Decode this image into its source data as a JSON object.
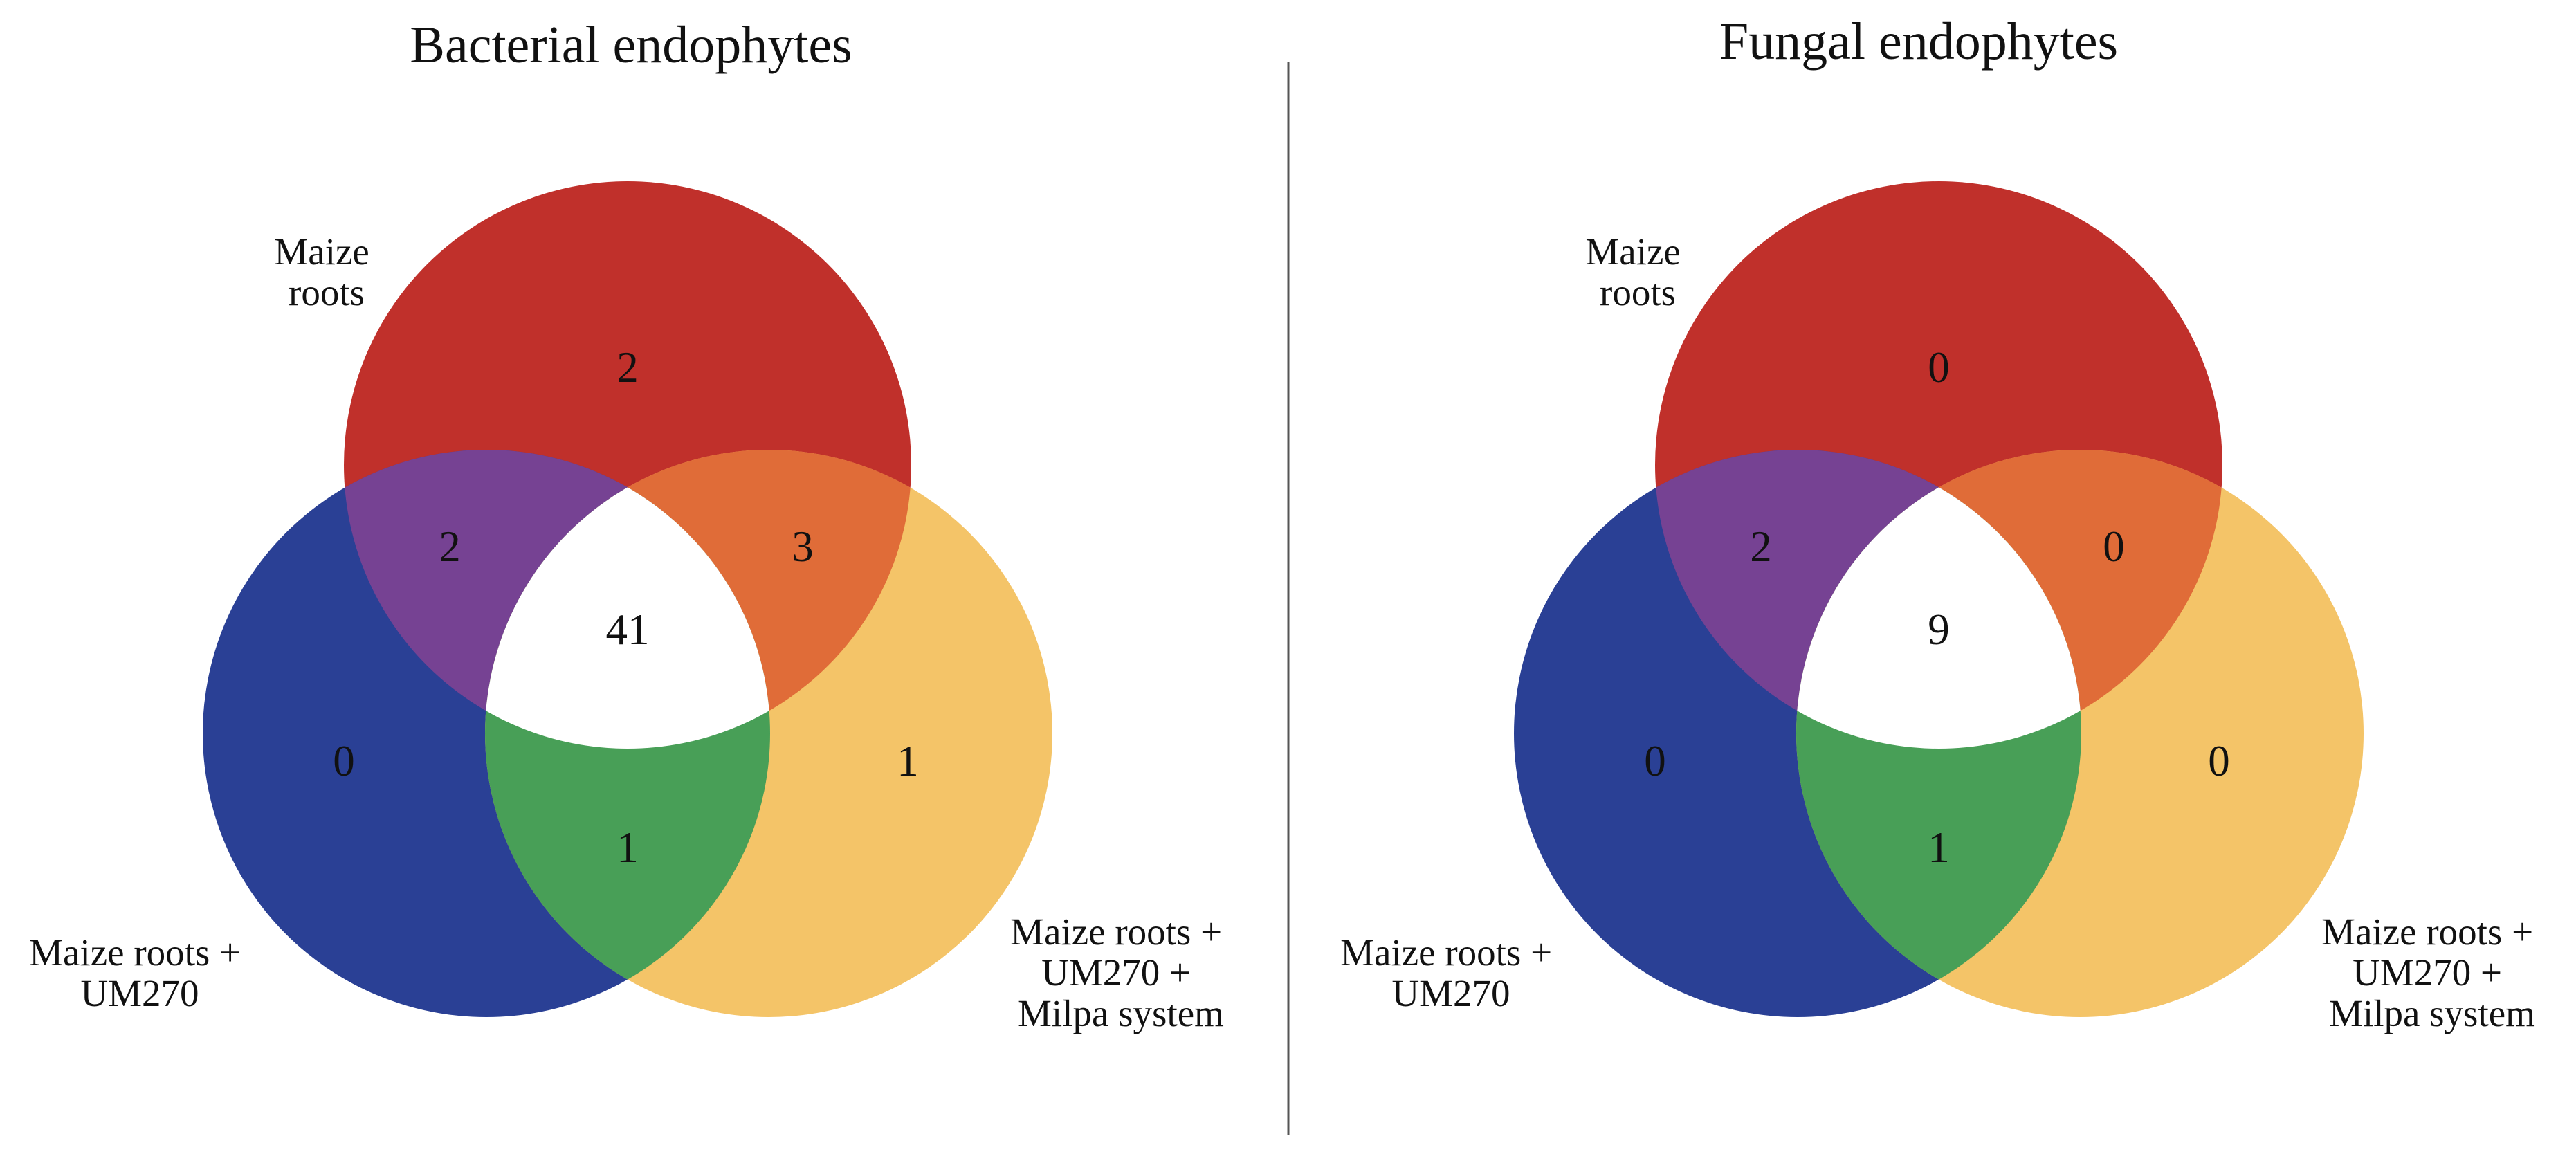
{
  "colors": {
    "maize_roots": "#C0302B",
    "maize_roots_um270": "#2A4095",
    "milpa": "#F4C468",
    "roots_x_um270": "#764293",
    "roots_x_milpa": "#E06C38",
    "um270_x_milpa": "#489F57",
    "all_three": "#FFFFFF"
  },
  "set_labels": {
    "maize_roots": [
      "Maize",
      "roots"
    ],
    "maize_roots_um270": [
      "Maize roots +",
      "UM270"
    ],
    "milpa": [
      "Maize roots  +",
      "UM270 +",
      "Milpa system"
    ]
  },
  "panels": [
    {
      "title": "Bacterial endophytes",
      "counts": {
        "roots_only": "2",
        "roots_um270": "2",
        "roots_milpa": "3",
        "all_three": "41",
        "um270_only": "0",
        "milpa_only": "1",
        "um270_milpa": "1"
      }
    },
    {
      "title": "Fungal endophytes",
      "counts": {
        "roots_only": "0",
        "roots_um270": "2",
        "roots_milpa": "0",
        "all_three": "9",
        "um270_only": "0",
        "milpa_only": "0",
        "um270_milpa": "1"
      }
    }
  ]
}
